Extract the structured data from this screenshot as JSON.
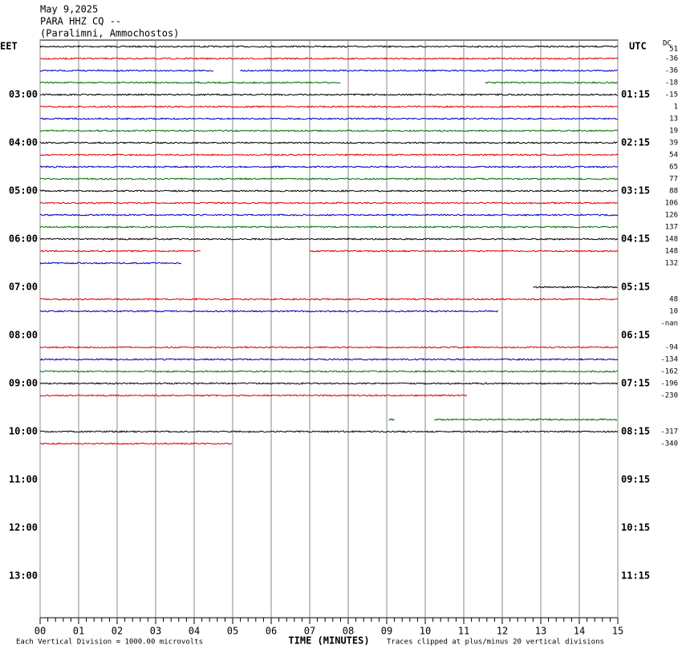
{
  "header": {
    "date": "May 9,2025",
    "station": "PARA HHZ CQ --",
    "location": "(Paralimni, Ammochostos)"
  },
  "axis": {
    "left_title": "EET",
    "right_title": "UTC",
    "dc_title": "DC",
    "left_hours": [
      "03:00",
      "04:00",
      "05:00",
      "06:00",
      "07:00",
      "08:00",
      "09:00",
      "10:00",
      "11:00",
      "12:00",
      "13:00"
    ],
    "right_hours": [
      "01:15",
      "02:15",
      "03:15",
      "04:15",
      "05:15",
      "06:15",
      "07:15",
      "08:15",
      "09:15",
      "10:15",
      "11:15"
    ],
    "x_ticks": [
      "00",
      "01",
      "02",
      "03",
      "04",
      "05",
      "06",
      "07",
      "08",
      "09",
      "10",
      "11",
      "12",
      "13",
      "14",
      "15"
    ],
    "x_title": "TIME (MINUTES)"
  },
  "footer": {
    "scale": "Each Vertical Division = 1000.00 microvolts",
    "clip": "Traces clipped at plus/minus 20 vertical divisions"
  },
  "dc_offsets": [
    51,
    -36,
    -36,
    -18,
    -15,
    1,
    13,
    19,
    39,
    54,
    65,
    77,
    88,
    106,
    126,
    137,
    148,
    148,
    132,
    null,
    null,
    48,
    10,
    "-nan",
    null,
    -94,
    -134,
    -162,
    -196,
    -230,
    null,
    null,
    -317,
    -340,
    null,
    null,
    null,
    null,
    null,
    null,
    null,
    null,
    null,
    null,
    null,
    null,
    null,
    null
  ],
  "trace_colors": [
    "#000000",
    "#e00000",
    "#0000c0",
    "#007000"
  ],
  "traces": [
    [
      [
        0,
        15
      ]
    ],
    [
      [
        0,
        15
      ]
    ],
    [
      [
        0,
        4.5
      ],
      [
        5.2,
        15
      ]
    ],
    [
      [
        0,
        7.8
      ],
      [
        11.56,
        15
      ]
    ],
    [
      [
        0,
        15
      ]
    ],
    [
      [
        0,
        15
      ]
    ],
    [
      [
        0,
        15
      ]
    ],
    [
      [
        0,
        15
      ]
    ],
    [
      [
        0,
        15
      ]
    ],
    [
      [
        0,
        15
      ]
    ],
    [
      [
        0,
        15
      ]
    ],
    [
      [
        0,
        15
      ]
    ],
    [
      [
        0,
        15
      ]
    ],
    [
      [
        0,
        15
      ]
    ],
    [
      [
        0,
        15
      ]
    ],
    [
      [
        0,
        15
      ]
    ],
    [
      [
        0,
        15
      ]
    ],
    [
      [
        0,
        4.17
      ],
      [
        7.0,
        15
      ]
    ],
    [
      [
        0,
        3.67
      ]
    ],
    null,
    [
      [
        12.8,
        15
      ]
    ],
    [
      [
        0,
        15
      ]
    ],
    [
      [
        0,
        11.9
      ]
    ],
    null,
    null,
    [
      [
        0,
        15
      ]
    ],
    [
      [
        0,
        15
      ]
    ],
    [
      [
        0,
        15
      ]
    ],
    [
      [
        0,
        15
      ]
    ],
    [
      [
        0,
        11.1
      ]
    ],
    null,
    [
      [
        9.05,
        9.2
      ],
      [
        10.23,
        15
      ]
    ],
    [
      [
        0,
        15
      ]
    ],
    [
      [
        0,
        4.98
      ]
    ],
    null,
    null,
    null,
    null,
    null,
    null,
    null,
    null,
    null,
    null,
    null,
    null,
    null,
    null
  ]
}
